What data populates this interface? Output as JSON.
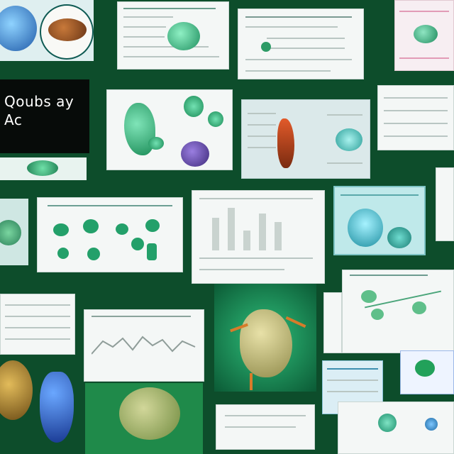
{
  "collage": {
    "title_lines": [
      "Qoubs ay",
      "Ac"
    ],
    "colors": {
      "background": "#0d4d2b",
      "paper": "#f4f7f6",
      "accent_green": "#2fbf7b",
      "accent_teal": "#5fd0c8",
      "accent_blue": "#2a5db8",
      "accent_orange": "#d77b2a",
      "title_bg": "#070b09"
    },
    "tiles": [
      {
        "name": "organ-illustrations-tile",
        "icon": "organ-icon"
      },
      {
        "name": "diagram-sheet-tile",
        "icon": "diagram-icon"
      },
      {
        "name": "report-sheet-tile",
        "icon": "document-icon"
      },
      {
        "name": "pink-diagram-tile",
        "icon": "diagram-icon"
      },
      {
        "name": "anatomy-chart-tile",
        "icon": "diagram-icon"
      },
      {
        "name": "teal-slide-tile",
        "icon": "slide-icon"
      },
      {
        "name": "network-diagram-tile",
        "icon": "network-icon"
      },
      {
        "name": "bar-chart-sheet-tile",
        "icon": "bar-chart-icon"
      },
      {
        "name": "cyan-screen-tile",
        "icon": "screen-icon"
      },
      {
        "name": "line-chart-sheet-tile",
        "icon": "line-chart-icon"
      },
      {
        "name": "3d-organ-render-tile",
        "icon": "organ-icon"
      },
      {
        "name": "leaf-diagram-tile",
        "icon": "leaf-icon"
      },
      {
        "name": "blue-sculpture-tile",
        "icon": "organ-icon"
      },
      {
        "name": "blank-report-tile",
        "icon": "document-icon"
      }
    ]
  }
}
